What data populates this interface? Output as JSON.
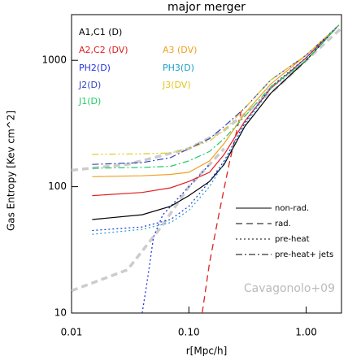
{
  "chart_data": {
    "type": "line",
    "title": "major merger",
    "xlabel": "r[Mpc/h]",
    "ylabel": "Gas Entropy [Kev cm^2]",
    "xscale": "log",
    "yscale": "log",
    "xlim": [
      0.01,
      2.0
    ],
    "ylim": [
      10,
      2300
    ],
    "xticks": [
      {
        "value": 0.01,
        "label": "0.01"
      },
      {
        "value": 0.1,
        "label": "0.10"
      },
      {
        "value": 1,
        "label": "1.00"
      }
    ],
    "yticks": [
      10,
      100,
      1000
    ],
    "series": [
      {
        "name": "A1,C1 (D)",
        "color": "#000000",
        "dash": "solid",
        "x": [
          0.015,
          0.04,
          0.07,
          0.1,
          0.15,
          0.2,
          0.3,
          0.5,
          1,
          1.9
        ],
        "values": [
          55,
          60,
          70,
          85,
          110,
          150,
          300,
          550,
          1000,
          1900
        ]
      },
      {
        "name": "A2,C2 (DV)",
        "color": "#e02020",
        "dash": "solid",
        "x": [
          0.015,
          0.04,
          0.07,
          0.1,
          0.15,
          0.2,
          0.3,
          0.5,
          1,
          1.9
        ],
        "values": [
          85,
          90,
          98,
          110,
          130,
          180,
          330,
          600,
          1050,
          1900
        ]
      },
      {
        "name": "A3 (DV)",
        "color": "#f0a020",
        "dash": "solid",
        "x": [
          0.015,
          0.04,
          0.07,
          0.1,
          0.15,
          0.2,
          0.3,
          0.5,
          1,
          1.9
        ],
        "values": [
          120,
          122,
          125,
          130,
          160,
          220,
          380,
          650,
          1100,
          1900
        ]
      },
      {
        "name": "PH2(D)",
        "color": "#2233dd",
        "dash": "dot",
        "x": [
          0.015,
          0.04,
          0.07,
          0.1,
          0.15,
          0.2,
          0.3,
          0.5,
          1,
          1.9
        ],
        "values": [
          45,
          48,
          55,
          70,
          110,
          160,
          320,
          620,
          1050,
          1900
        ]
      },
      {
        "name": "PH3(D)",
        "color": "#1aa0c8",
        "dash": "dot",
        "x": [
          0.015,
          0.04,
          0.07,
          0.1,
          0.15,
          0.2,
          0.3,
          0.5,
          1,
          1.9
        ],
        "values": [
          42,
          46,
          52,
          65,
          100,
          155,
          310,
          600,
          1000,
          1900
        ]
      },
      {
        "name": "J2(D)",
        "color": "#3344bb",
        "dash": "dashdot",
        "x": [
          0.015,
          0.04,
          0.07,
          0.1,
          0.15,
          0.2,
          0.3,
          0.5,
          1,
          1.9
        ],
        "values": [
          150,
          155,
          170,
          200,
          240,
          300,
          420,
          700,
          1100,
          1900
        ]
      },
      {
        "name": "J3(DV)",
        "color": "#e0c820",
        "dash": "dashdotdot",
        "x": [
          0.015,
          0.04,
          0.07,
          0.1,
          0.15,
          0.2,
          0.3,
          0.5,
          1,
          1.9
        ],
        "values": [
          180,
          182,
          185,
          200,
          230,
          280,
          420,
          700,
          1100,
          1900
        ]
      },
      {
        "name": "J1(D)",
        "color": "#22cc66",
        "dash": "dashdot",
        "x": [
          0.015,
          0.04,
          0.07,
          0.1,
          0.15,
          0.2,
          0.3,
          0.5,
          1,
          1.9
        ],
        "values": [
          140,
          142,
          145,
          160,
          190,
          240,
          360,
          620,
          1000,
          1900
        ]
      }
    ],
    "extra_lines": [
      {
        "color": "#2233dd",
        "dash": "dot",
        "x": [
          0.04,
          0.045,
          0.05,
          0.06,
          0.08,
          0.1,
          0.15
        ],
        "values": [
          10,
          20,
          40,
          60,
          80,
          100,
          150
        ]
      },
      {
        "color": "#e02020",
        "dash": "dash",
        "x": [
          0.13,
          0.15,
          0.18,
          0.22,
          0.28
        ],
        "values": [
          10,
          25,
          60,
          150,
          400
        ]
      }
    ],
    "reference": {
      "label": "Cavagonolo+09",
      "color": "#cccccc",
      "lines": [
        {
          "x": [
            0.01,
            0.03,
            0.1,
            0.2,
            0.5,
            1,
            2
          ],
          "values": [
            135,
            150,
            200,
            280,
            550,
            1000,
            1800
          ]
        },
        {
          "x": [
            0.01,
            0.03,
            0.06,
            0.1,
            0.2
          ],
          "values": [
            15,
            22,
            50,
            100,
            200
          ]
        }
      ]
    },
    "style_legend": [
      {
        "label": "non-rad.",
        "dash": "solid"
      },
      {
        "label": "rad.",
        "dash": "dash"
      },
      {
        "label": "pre-heat",
        "dash": "dot"
      },
      {
        "label": "pre-heat+ jets",
        "dash": "dashdot"
      }
    ]
  }
}
